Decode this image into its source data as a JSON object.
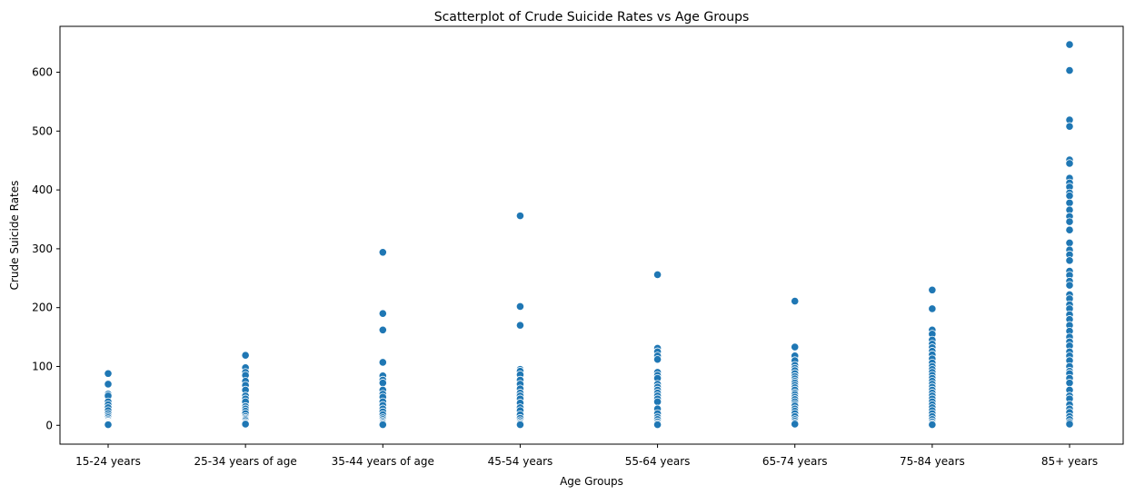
{
  "chart_data": {
    "type": "scatter",
    "title": "Scatterplot of Crude Suicide Rates vs Age Groups",
    "xlabel": "Age Groups",
    "ylabel": "Crude Suicide Rates",
    "categories": [
      "15-24 years",
      "25-34 years of age",
      "35-44 years of age",
      "45-54 years",
      "55-64 years",
      "65-74 years",
      "75-84 years",
      "85+ years"
    ],
    "yticks": [
      0,
      100,
      200,
      300,
      400,
      500,
      600
    ],
    "ylim": [
      -32,
      678
    ],
    "grid": false,
    "legend": "none",
    "colors": {
      "point": "#1f77b4"
    },
    "series": [
      {
        "category": "15-24 years",
        "values": [
          88,
          70,
          53,
          50,
          40,
          35,
          30,
          25,
          20,
          16,
          13,
          10,
          8,
          6,
          5,
          4,
          3,
          2,
          1
        ]
      },
      {
        "category": "25-34 years of age",
        "values": [
          119,
          98,
          90,
          85,
          75,
          68,
          60,
          50,
          45,
          40,
          32,
          28,
          24,
          20,
          15,
          12,
          10,
          8,
          5,
          3,
          2
        ]
      },
      {
        "category": "35-44 years of age",
        "values": [
          294,
          190,
          162,
          107,
          84,
          77,
          72,
          60,
          53,
          48,
          40,
          34,
          28,
          23,
          18,
          13,
          10,
          7,
          5,
          3,
          1
        ]
      },
      {
        "category": "45-54 years",
        "values": [
          356,
          202,
          170,
          95,
          92,
          86,
          77,
          70,
          62,
          55,
          50,
          45,
          38,
          30,
          25,
          18,
          12,
          8,
          5,
          3,
          1
        ]
      },
      {
        "category": "55-64 years",
        "values": [
          256,
          131,
          125,
          118,
          112,
          90,
          85,
          80,
          70,
          65,
          60,
          55,
          50,
          45,
          40,
          28,
          20,
          14,
          10,
          6,
          3,
          1
        ]
      },
      {
        "category": "65-74 years",
        "values": [
          211,
          133,
          118,
          110,
          102,
          97,
          93,
          88,
          83,
          79,
          75,
          72,
          68,
          64,
          60,
          55,
          52,
          48,
          44,
          40,
          36,
          33,
          28,
          24,
          20,
          15,
          10,
          7,
          4,
          2
        ]
      },
      {
        "category": "75-84 years",
        "values": [
          230,
          198,
          162,
          155,
          145,
          138,
          132,
          126,
          120,
          113,
          106,
          100,
          95,
          90,
          85,
          80,
          75,
          70,
          65,
          60,
          55,
          50,
          45,
          40,
          35,
          30,
          25,
          20,
          15,
          10,
          6,
          3,
          1
        ]
      },
      {
        "category": "85+ years",
        "values": [
          647,
          603,
          519,
          508,
          451,
          445,
          420,
          412,
          405,
          395,
          390,
          378,
          366,
          355,
          346,
          332,
          310,
          298,
          290,
          280,
          262,
          255,
          245,
          238,
          222,
          215,
          205,
          198,
          188,
          180,
          170,
          160,
          150,
          142,
          135,
          125,
          118,
          110,
          100,
          92,
          88,
          80,
          72,
          60,
          50,
          45,
          35,
          28,
          22,
          15,
          10,
          5,
          2
        ]
      }
    ]
  }
}
